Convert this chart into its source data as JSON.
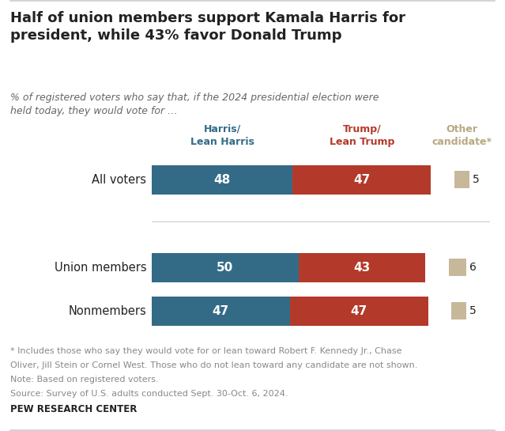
{
  "title": "Half of union members support Kamala Harris for\npresident, while 43% favor Donald Trump",
  "subtitle": "% of registered voters who say that, if the 2024 presidential election were\nheld today, they would vote for …",
  "categories": [
    "All voters",
    "Union members",
    "Nonmembers"
  ],
  "harris_values": [
    48,
    50,
    47
  ],
  "trump_values": [
    47,
    43,
    47
  ],
  "other_values": [
    5,
    6,
    5
  ],
  "harris_color": "#336b87",
  "trump_color": "#b33a2a",
  "other_color": "#c8b89a",
  "harris_label": "Harris/\nLean Harris",
  "trump_label": "Trump/\nLean Trump",
  "other_label": "Other\ncandidate*",
  "harris_label_color": "#336b87",
  "trump_label_color": "#b33a2a",
  "other_label_color": "#b8a882",
  "footnote_line1": "* Includes those who say they would vote for or lean toward Robert F. Kennedy Jr., Chase",
  "footnote_line2": "Oliver, Jill Stein or Cornel West. Those who do not lean toward any candidate are not shown.",
  "footnote_line3": "Note: Based on registered voters.",
  "footnote_line4": "Source: Survey of U.S. adults conducted Sept. 30-Oct. 6, 2024.",
  "source_label": "PEW RESEARCH CENTER",
  "background_color": "#ffffff",
  "text_color": "#222222",
  "footnote_color": "#888888",
  "border_color": "#cccccc",
  "separator_color": "#cccccc"
}
